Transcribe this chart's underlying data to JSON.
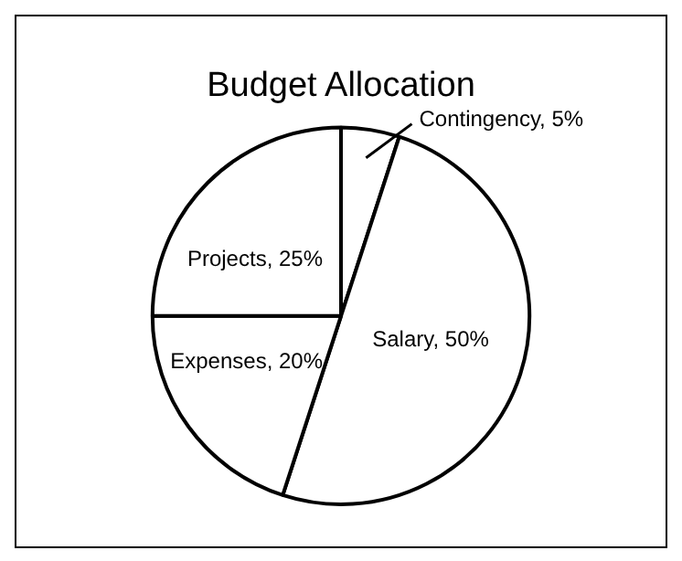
{
  "chart_data": {
    "type": "pie",
    "title": "Budget Allocation",
    "categories": [
      "Contingency",
      "Salary",
      "Expenses",
      "Projects"
    ],
    "values": [
      5,
      50,
      20,
      25
    ],
    "colors": [
      "#ffffff",
      "#ffffff",
      "#ffffff",
      "#ffffff"
    ],
    "value_labels": [
      "5%",
      "50%",
      "20%",
      "25%"
    ]
  }
}
